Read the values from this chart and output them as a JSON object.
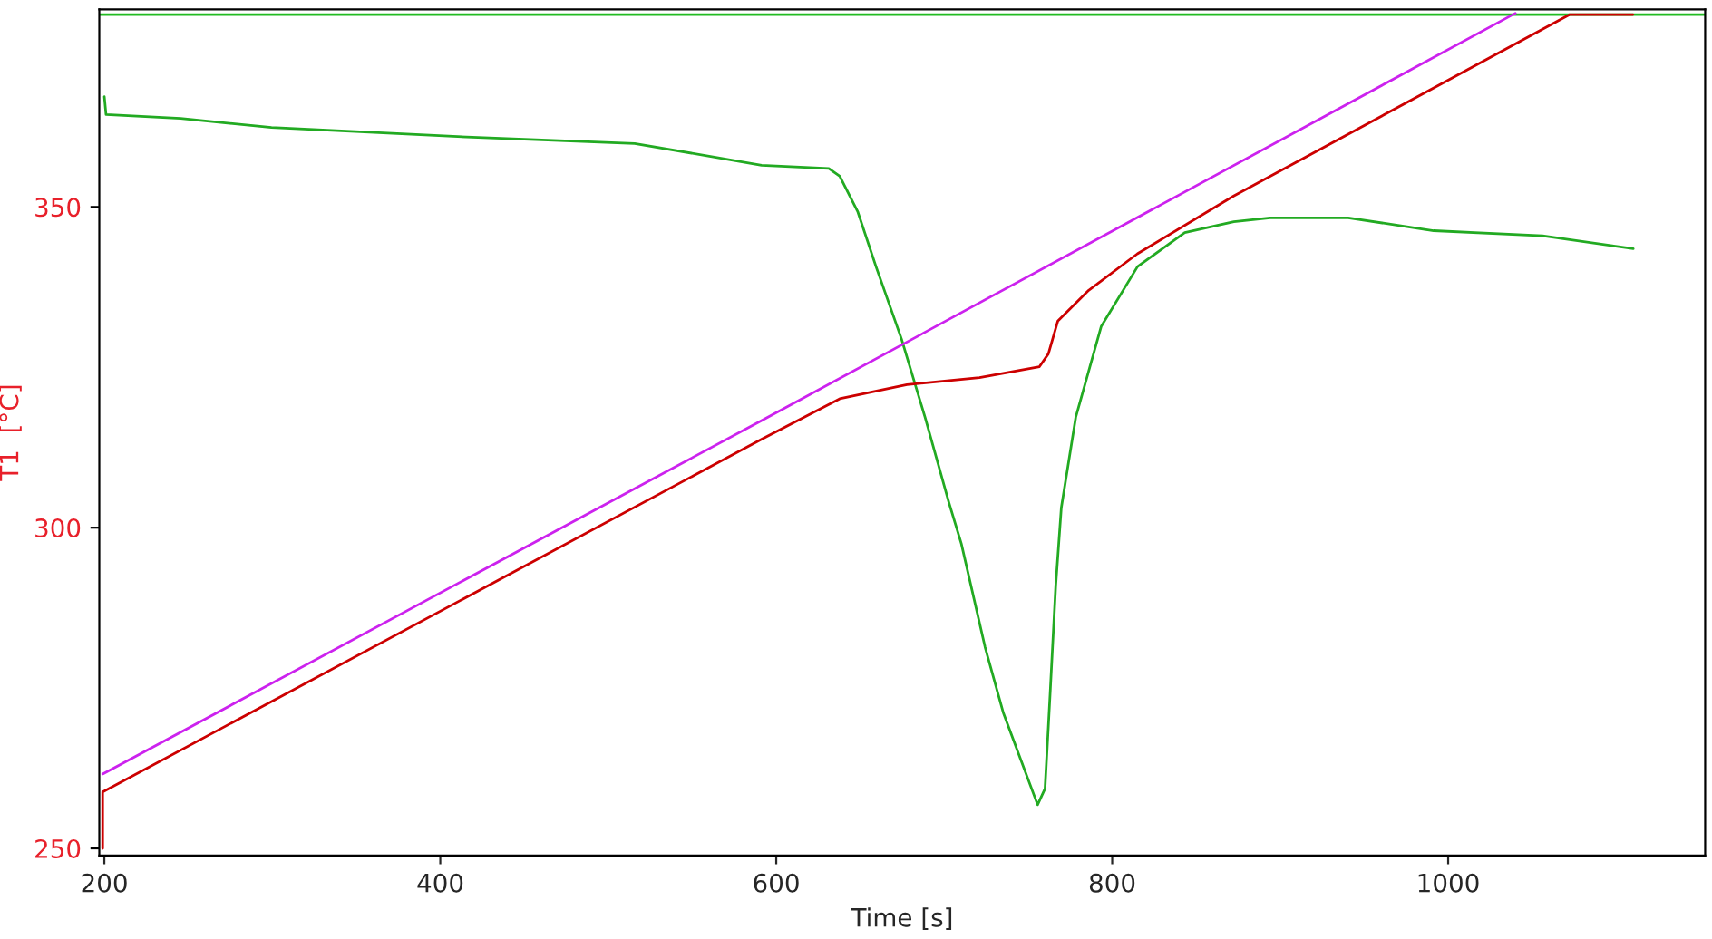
{
  "chart_data": {
    "type": "line",
    "xlabel": "Time [s]",
    "ylabel": "T1  [°C]",
    "xlim": [
      197,
      1153
    ],
    "ylim": [
      248.9,
      380.8
    ],
    "xticks": [
      200,
      400,
      600,
      800,
      1000
    ],
    "yticks": [
      250,
      300,
      350
    ],
    "grid": false,
    "legend": false,
    "marker": "none",
    "line_style": "solid",
    "series": [
      {
        "color": "#22bb22",
        "x": [
          197,
          1153
        ],
        "values": [
          380,
          380
        ]
      },
      {
        "color": "#22aa22",
        "x": [
          200,
          201,
          245.4,
          299.5,
          407.6,
          515.7,
          591.3,
          631.3,
          637.8,
          648.6,
          659.4,
          674.6,
          688.6,
          702.7,
          710.2,
          724.3,
          735.1,
          745.9,
          755.6,
          760,
          763.2,
          766.4,
          769.7,
          778.3,
          793.5,
          815.1,
          843.2,
          872.4,
          894,
          940.5,
          991.3,
          1056.2,
          1110.2
        ],
        "values": [
          367.2,
          364.4,
          363.8,
          362.4,
          361,
          359.9,
          356.5,
          356,
          354.8,
          349.2,
          340.7,
          329.4,
          317.2,
          304,
          297.5,
          281.4,
          271.2,
          263.6,
          256.8,
          259.3,
          274.9,
          291,
          303.1,
          317.2,
          331.4,
          340.7,
          346,
          347.7,
          348.3,
          348.3,
          346.3,
          345.5,
          343.5
        ]
      },
      {
        "color": "#cc22ee",
        "x": [
          199,
          591.3,
          1040
        ],
        "values": [
          261.6,
          316.7,
          380.2
        ]
      },
      {
        "color": "#cc0000",
        "x": [
          199,
          199,
          591.4,
          637.8,
          677.8,
          721,
          756.7,
          762,
          767.6,
          786,
          815,
          872.3,
          1072.4,
          1110
        ],
        "values": [
          250,
          258.8,
          313.8,
          320.1,
          322.3,
          323.4,
          325.1,
          327.1,
          332.2,
          337,
          342.7,
          351.7,
          380,
          380
        ]
      }
    ]
  }
}
